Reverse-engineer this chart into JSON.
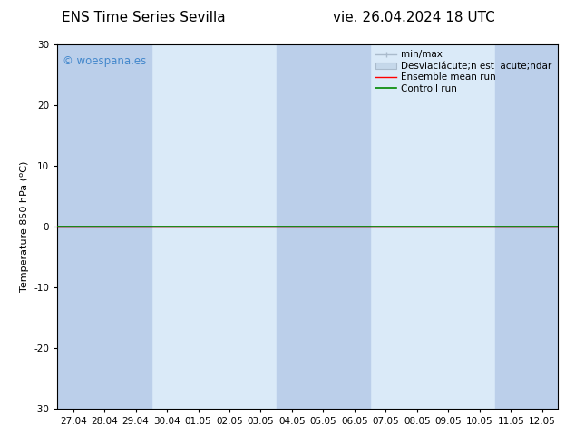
{
  "title_left": "ENS Time Series Sevilla",
  "title_right": "vie. 26.04.2024 18 UTC",
  "ylabel": "Temperature 850 hPa (ºC)",
  "ylim": [
    -30,
    30
  ],
  "yticks": [
    -30,
    -20,
    -10,
    0,
    10,
    20,
    30
  ],
  "xlabels": [
    "27.04",
    "28.04",
    "29.04",
    "30.04",
    "01.05",
    "02.05",
    "03.05",
    "04.05",
    "05.05",
    "06.05",
    "07.05",
    "08.05",
    "09.05",
    "10.05",
    "11.05",
    "12.05"
  ],
  "bg_color": "#ffffff",
  "plot_bg_color": "#daeaf8",
  "shade_color": "#bbcfea",
  "shade_indices": [
    0,
    1,
    2,
    4,
    8,
    10,
    14,
    15
  ],
  "zero_line_color": "#000000",
  "ensemble_mean_color": "#ff0000",
  "control_run_color": "#008800",
  "watermark_text": "© woespana.es",
  "watermark_color": "#4488cc",
  "title_fontsize": 11,
  "axis_fontsize": 8,
  "tick_fontsize": 7.5,
  "legend_fontsize": 7.5
}
